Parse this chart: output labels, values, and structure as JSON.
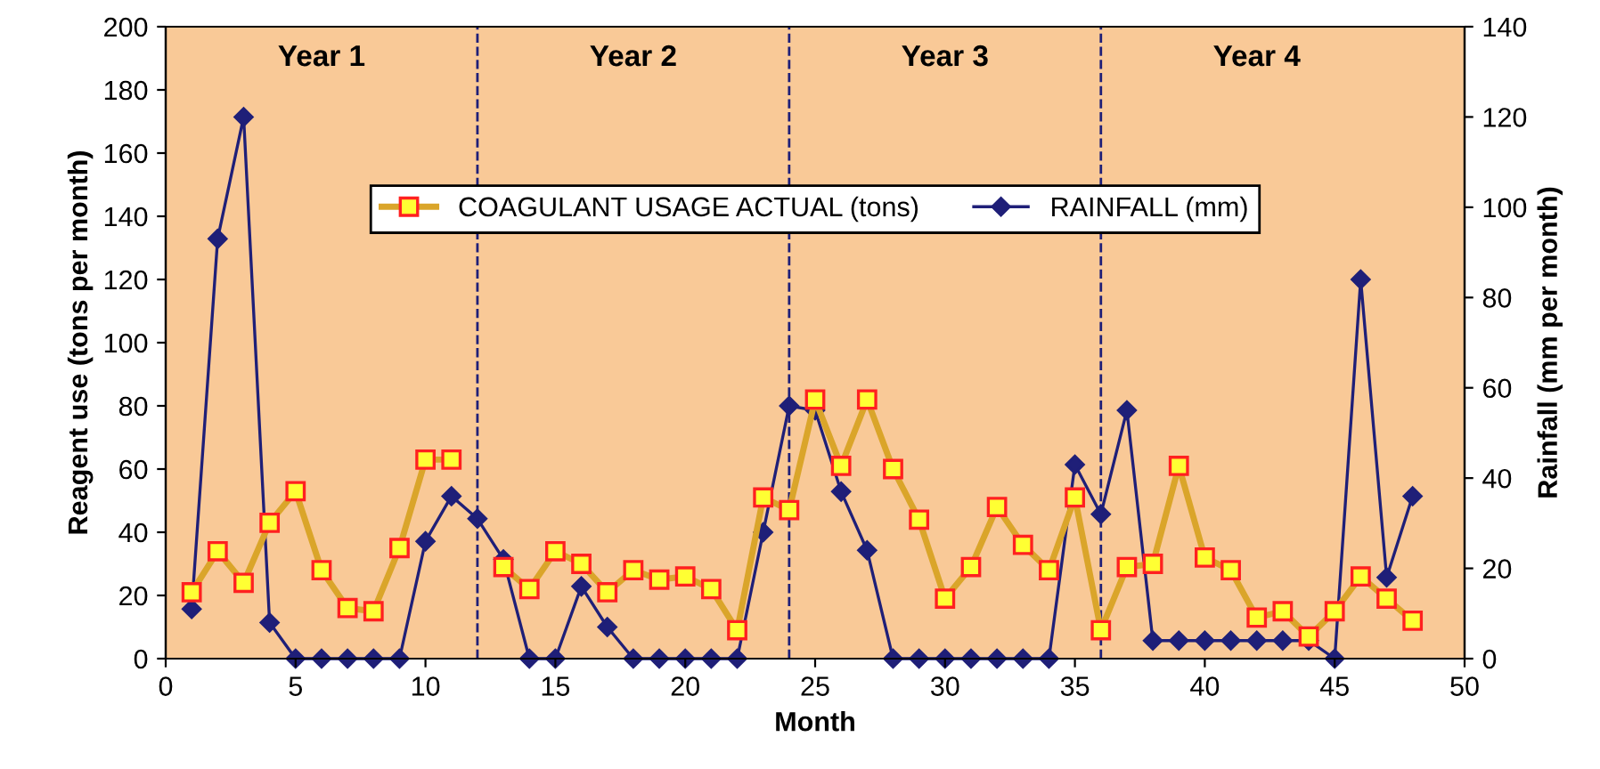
{
  "chart_data": {
    "type": "line",
    "xlabel": "Month",
    "ylabel": "Reagent use (tons per month)",
    "y2label": "Rainfall (mm per month)",
    "x": [
      1,
      2,
      3,
      4,
      5,
      6,
      7,
      8,
      9,
      10,
      11,
      12,
      13,
      14,
      15,
      16,
      17,
      18,
      19,
      20,
      21,
      22,
      23,
      24,
      25,
      26,
      27,
      28,
      29,
      30,
      31,
      32,
      33,
      34,
      35,
      36,
      37,
      38,
      39,
      40,
      41,
      42,
      43,
      44,
      45,
      46,
      47,
      48
    ],
    "series": [
      {
        "name": "COAGULANT USAGE ACTUAL (tons)",
        "color": "#daa52a",
        "marker": "square",
        "values": [
          21,
          34,
          24,
          43,
          53,
          28,
          16,
          15,
          35,
          63,
          63,
          null,
          29,
          22,
          34,
          30,
          21,
          28,
          25,
          26,
          22,
          9,
          51,
          47,
          82,
          61,
          82,
          60,
          44,
          19,
          29,
          48,
          36,
          28,
          51,
          9,
          29,
          30,
          61,
          32,
          28,
          13,
          15,
          7,
          15,
          26,
          19,
          12
        ]
      },
      {
        "name": "RAINFALL (mm)",
        "color": "#1f1f78",
        "marker": "diamond",
        "axis": "y2",
        "values": [
          11,
          93,
          120,
          8,
          0,
          0,
          0,
          0,
          0,
          26,
          36,
          31,
          22,
          0,
          0,
          16,
          7,
          0,
          0,
          0,
          0,
          0,
          28,
          56,
          55,
          37,
          24,
          0,
          0,
          0,
          0,
          0,
          0,
          0,
          43,
          32,
          55,
          4,
          4,
          4,
          4,
          4,
          4,
          4,
          0,
          84,
          18,
          36
        ]
      }
    ],
    "xlim": [
      0,
      50
    ],
    "xticks": [
      0,
      5,
      10,
      15,
      20,
      25,
      30,
      35,
      40,
      45,
      50
    ],
    "ylim": [
      0,
      200
    ],
    "yticks": [
      0,
      20,
      40,
      60,
      80,
      100,
      120,
      140,
      160,
      180,
      200
    ],
    "y2lim": [
      0,
      140
    ],
    "y2ticks": [
      0,
      20,
      40,
      60,
      80,
      100,
      120,
      140
    ],
    "ref_lines": [
      {
        "axis": "x",
        "value": 12,
        "color": "#1f1f78",
        "line_style": "dashed"
      },
      {
        "axis": "x",
        "value": 24,
        "color": "#1f1f78",
        "line_style": "dashed"
      },
      {
        "axis": "x",
        "value": 36,
        "color": "#1f1f78",
        "line_style": "dashed"
      }
    ],
    "annotations": [
      "Year 1",
      "Year 2",
      "Year 3",
      "Year 4"
    ],
    "legend": "top",
    "grid": false,
    "line_style": "solid"
  }
}
